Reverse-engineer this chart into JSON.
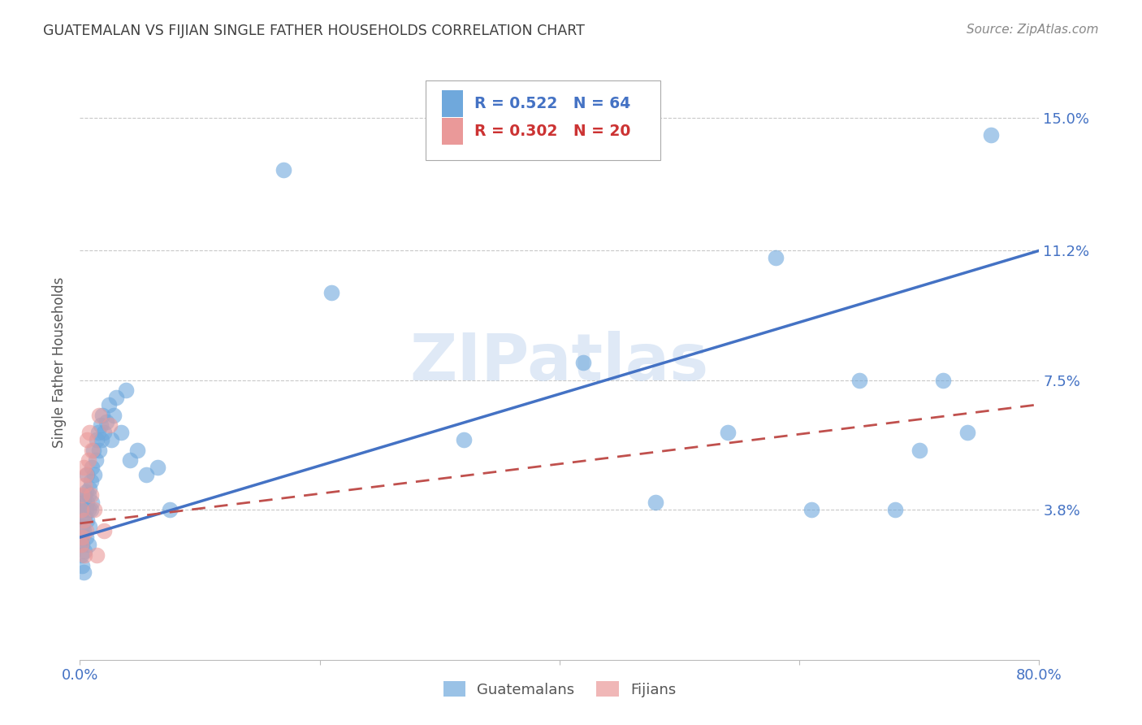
{
  "title": "GUATEMALAN VS FIJIAN SINGLE FATHER HOUSEHOLDS CORRELATION CHART",
  "source": "Source: ZipAtlas.com",
  "ylabel": "Single Father Households",
  "watermark": "ZIPatlas",
  "xlim": [
    0.0,
    0.8
  ],
  "ylim": [
    -0.005,
    0.165
  ],
  "ytick_labels": [
    "15.0%",
    "11.2%",
    "7.5%",
    "3.8%"
  ],
  "ytick_values": [
    0.15,
    0.112,
    0.075,
    0.038
  ],
  "guatemalan_R": "0.522",
  "guatemalan_N": "64",
  "fijian_R": "0.302",
  "fijian_N": "20",
  "guatemalan_color": "#6fa8dc",
  "fijian_color": "#ea9999",
  "trend_guatemalan_color": "#4472c4",
  "trend_fijian_color": "#c0504d",
  "background_color": "#ffffff",
  "grid_color": "#c8c8c8",
  "label_color": "#4472c4",
  "title_color": "#404040",
  "trend_g_x0": 0.0,
  "trend_g_y0": 0.03,
  "trend_g_x1": 0.8,
  "trend_g_y1": 0.112,
  "trend_f_x0": 0.0,
  "trend_f_y0": 0.034,
  "trend_f_x1": 0.8,
  "trend_f_y1": 0.068,
  "guatemalan_x": [
    0.001,
    0.001,
    0.002,
    0.002,
    0.002,
    0.002,
    0.003,
    0.003,
    0.003,
    0.003,
    0.004,
    0.004,
    0.004,
    0.005,
    0.005,
    0.005,
    0.006,
    0.006,
    0.006,
    0.007,
    0.007,
    0.007,
    0.008,
    0.008,
    0.009,
    0.009,
    0.01,
    0.01,
    0.011,
    0.012,
    0.013,
    0.014,
    0.015,
    0.016,
    0.017,
    0.018,
    0.019,
    0.02,
    0.022,
    0.024,
    0.026,
    0.028,
    0.03,
    0.034,
    0.038,
    0.042,
    0.048,
    0.055,
    0.065,
    0.075,
    0.17,
    0.21,
    0.32,
    0.42,
    0.48,
    0.54,
    0.58,
    0.61,
    0.65,
    0.68,
    0.7,
    0.72,
    0.74,
    0.76
  ],
  "guatemalan_y": [
    0.03,
    0.025,
    0.033,
    0.028,
    0.038,
    0.022,
    0.032,
    0.035,
    0.04,
    0.02,
    0.036,
    0.042,
    0.026,
    0.038,
    0.043,
    0.03,
    0.04,
    0.035,
    0.048,
    0.038,
    0.042,
    0.028,
    0.044,
    0.033,
    0.046,
    0.038,
    0.05,
    0.04,
    0.055,
    0.048,
    0.052,
    0.058,
    0.06,
    0.055,
    0.062,
    0.058,
    0.065,
    0.06,
    0.063,
    0.068,
    0.058,
    0.065,
    0.07,
    0.06,
    0.072,
    0.052,
    0.055,
    0.048,
    0.05,
    0.038,
    0.135,
    0.1,
    0.058,
    0.08,
    0.04,
    0.06,
    0.11,
    0.038,
    0.075,
    0.038,
    0.055,
    0.075,
    0.06,
    0.145
  ],
  "fijian_x": [
    0.001,
    0.001,
    0.002,
    0.002,
    0.003,
    0.003,
    0.004,
    0.004,
    0.005,
    0.005,
    0.006,
    0.007,
    0.008,
    0.009,
    0.01,
    0.012,
    0.014,
    0.016,
    0.02,
    0.025
  ],
  "fijian_y": [
    0.028,
    0.038,
    0.03,
    0.042,
    0.035,
    0.05,
    0.025,
    0.045,
    0.032,
    0.048,
    0.058,
    0.052,
    0.06,
    0.042,
    0.055,
    0.038,
    0.025,
    0.065,
    0.032,
    0.062
  ]
}
